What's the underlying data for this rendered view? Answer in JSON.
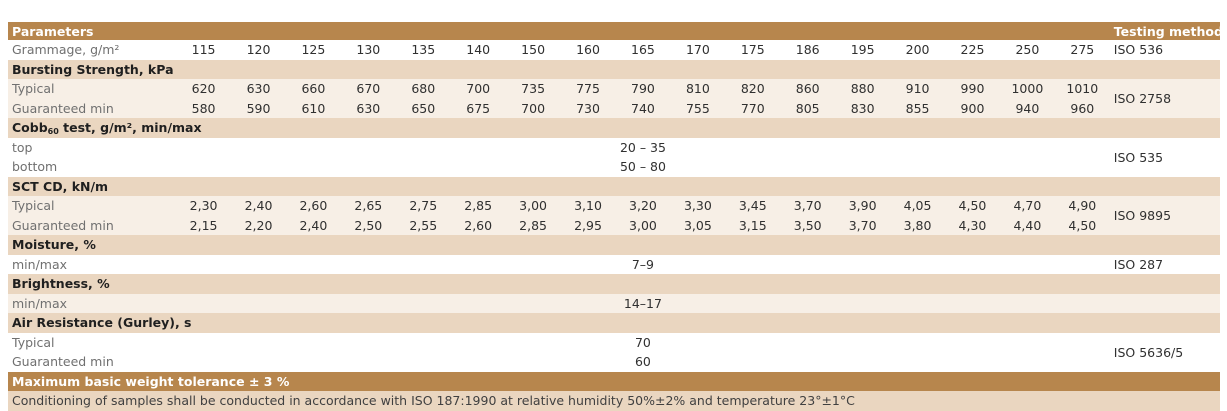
{
  "header": {
    "parameters": "Parameters",
    "testing_method": "Testing method"
  },
  "grammage": {
    "label": "Grammage, g/m²",
    "values": [
      "115",
      "120",
      "125",
      "130",
      "135",
      "140",
      "150",
      "160",
      "165",
      "170",
      "175",
      "186",
      "195",
      "200",
      "225",
      "250",
      "275"
    ],
    "method": "ISO 536"
  },
  "bursting": {
    "title": "Bursting Strength, kPa",
    "typical_label": "Typical",
    "typical": [
      "620",
      "630",
      "660",
      "670",
      "680",
      "700",
      "735",
      "775",
      "790",
      "810",
      "820",
      "860",
      "880",
      "910",
      "990",
      "1000",
      "1010"
    ],
    "guaranteed_label": "Guaranteed min",
    "guaranteed": [
      "580",
      "590",
      "610",
      "630",
      "650",
      "675",
      "700",
      "730",
      "740",
      "755",
      "770",
      "805",
      "830",
      "855",
      "900",
      "940",
      "960"
    ],
    "method": "ISO 2758"
  },
  "cobb": {
    "title_pre": "Cobb",
    "title_sub": "60",
    "title_post": " test, g/m², min/max",
    "top_label": "top",
    "top_value": "20 – 35",
    "bottom_label": "bottom",
    "bottom_value": "50 – 80",
    "method": "ISO 535"
  },
  "sct": {
    "title": "SCT CD, kN/m",
    "typical_label": "Typical",
    "typical": [
      "2,30",
      "2,40",
      "2,60",
      "2,65",
      "2,75",
      "2,85",
      "3,00",
      "3,10",
      "3,20",
      "3,30",
      "3,45",
      "3,70",
      "3,90",
      "4,05",
      "4,50",
      "4,70",
      "4,90"
    ],
    "guaranteed_label": "Guaranteed min",
    "guaranteed": [
      "2,15",
      "2,20",
      "2,40",
      "2,50",
      "2,55",
      "2,60",
      "2,85",
      "2,95",
      "3,00",
      "3,05",
      "3,15",
      "3,50",
      "3,70",
      "3,80",
      "4,30",
      "4,40",
      "4,50"
    ],
    "method": "ISO 9895"
  },
  "moisture": {
    "title": "Moisture, %",
    "label": "min/max",
    "value": "7–9",
    "method": "ISO 287"
  },
  "brightness": {
    "title": "Brightness, %",
    "label": "min/max",
    "value": "14–17",
    "method": ""
  },
  "air": {
    "title": "Air Resistance (Gurley), s",
    "typical_label": "Typical",
    "typical_value": "70",
    "guaranteed_label": "Guaranteed min",
    "guaranteed_value": "60",
    "method": "ISO 5636/5"
  },
  "footer": {
    "tolerance": "Maximum basic weight tolerance ± 3 %",
    "conditioning": "Conditioning of samples shall be conducted in accordance with ISO 187:1990 at relative humidity 50%±2% and temperature 23°±1°C"
  }
}
